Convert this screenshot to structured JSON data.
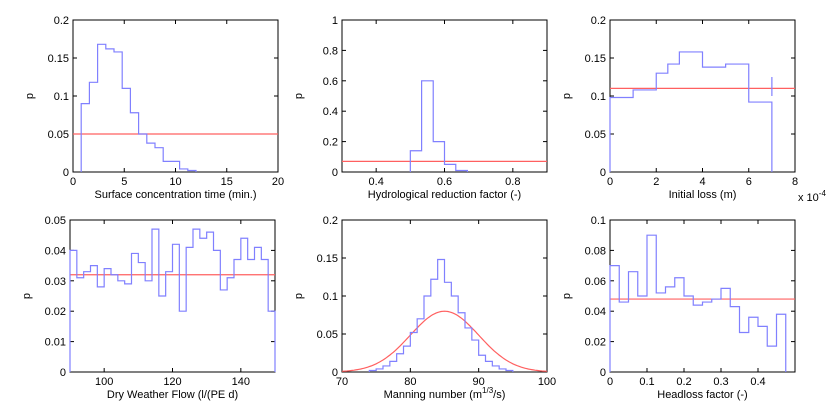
{
  "colors": {
    "histogram": "#8080ff",
    "prior": "#ff6060",
    "axes": "#000000"
  },
  "chart_data": [
    {
      "type": "step",
      "xlabel": "Surface concentration time (min.)",
      "ylabel": "p",
      "xlim": [
        0,
        20
      ],
      "ylim": [
        0,
        0.2
      ],
      "xticks": [
        "0",
        "5",
        "10",
        "15",
        "20"
      ],
      "yticks": [
        "0",
        "0.05",
        "0.1",
        "0.15",
        "0.2"
      ],
      "histogram": {
        "edges": [
          0.8,
          1.6,
          2.4,
          3.2,
          4.0,
          4.8,
          5.6,
          6.4,
          7.2,
          8.0,
          8.8,
          9.6,
          10.4,
          11.2,
          12.0
        ],
        "values": [
          0.09,
          0.118,
          0.168,
          0.162,
          0.158,
          0.11,
          0.078,
          0.05,
          0.038,
          0.032,
          0.014,
          0.014,
          0.004,
          0.002
        ]
      },
      "prior": {
        "kind": "constant",
        "value": 0.05,
        "x": [
          0,
          20
        ]
      }
    },
    {
      "type": "step",
      "xlabel": "Hydrological reduction factor (-)",
      "ylabel": "p",
      "xlim": [
        0.3,
        0.9
      ],
      "ylim": [
        0,
        1
      ],
      "xticks": [
        "0.4",
        "0.6",
        "0.8"
      ],
      "yticks": [
        "0",
        "0.2",
        "0.4",
        "0.6",
        "0.8",
        "1"
      ],
      "histogram": {
        "edges": [
          0.5,
          0.533,
          0.567,
          0.6,
          0.633,
          0.667
        ],
        "values": [
          0.14,
          0.6,
          0.2,
          0.05,
          0.01
        ]
      },
      "prior": {
        "kind": "constant",
        "value": 0.07,
        "x": [
          0.3,
          0.9
        ]
      }
    },
    {
      "type": "step",
      "xlabel": "Initial loss (m)",
      "ylabel": "p",
      "xlim": [
        0,
        8
      ],
      "ylim": [
        0,
        0.2
      ],
      "xticks": [
        "0",
        "2",
        "4",
        "6",
        "8"
      ],
      "yticks": [
        "0",
        "0.05",
        "0.1",
        "0.15",
        "0.2"
      ],
      "multiplier": "x 10",
      "multiplier_exp": "-4",
      "histogram": {
        "edges": [
          0,
          1,
          2,
          2.5,
          3,
          4,
          5,
          6,
          7
        ],
        "values": [
          0.098,
          0.108,
          0.13,
          0.142,
          0.158,
          0.138,
          0.142,
          0.092
        ]
      },
      "prior": {
        "kind": "constant",
        "value": 0.11,
        "x": [
          0,
          8
        ]
      },
      "tail": {
        "x": 7.0,
        "y0": 0.1,
        "y1": 0.125
      }
    },
    {
      "type": "step",
      "xlabel": "Dry Weather Flow (l/(PE d)",
      "ylabel": "p",
      "xlim": [
        90,
        150
      ],
      "ylim": [
        0,
        0.05
      ],
      "xticks": [
        "100",
        "120",
        "140"
      ],
      "yticks": [
        "0",
        "0.01",
        "0.02",
        "0.03",
        "0.04",
        "0.05"
      ],
      "histogram": {
        "edges": [
          90,
          92,
          94,
          96,
          98,
          100,
          102,
          104,
          106,
          108,
          110,
          112,
          114,
          116,
          118,
          120,
          122,
          124,
          126,
          128,
          130,
          132,
          134,
          136,
          138,
          140,
          142,
          144,
          146,
          148,
          150
        ],
        "values": [
          0.04,
          0.031,
          0.033,
          0.035,
          0.028,
          0.034,
          0.032,
          0.03,
          0.029,
          0.039,
          0.036,
          0.03,
          0.047,
          0.025,
          0.033,
          0.042,
          0.02,
          0.041,
          0.047,
          0.044,
          0.046,
          0.04,
          0.027,
          0.031,
          0.037,
          0.044,
          0.037,
          0.041,
          0.037,
          0.02
        ]
      },
      "prior": {
        "kind": "constant",
        "value": 0.032,
        "x": [
          90,
          150
        ]
      }
    },
    {
      "type": "step",
      "xlabel": "Manning number (m",
      "xlabel_sup": "1/3",
      "xlabel_tail": "/s)",
      "ylabel": "p",
      "xlim": [
        70,
        100
      ],
      "ylim": [
        0,
        0.2
      ],
      "xticks": [
        "70",
        "80",
        "90",
        "100"
      ],
      "yticks": [
        "0",
        "0.05",
        "0.1",
        "0.15",
        "0.2"
      ],
      "histogram": {
        "edges": [
          74,
          75,
          76,
          77,
          78,
          79,
          80,
          81,
          82,
          83,
          84,
          85,
          86,
          87,
          88,
          89,
          90,
          91,
          92,
          93,
          94,
          95
        ],
        "values": [
          0.002,
          0.004,
          0.008,
          0.014,
          0.024,
          0.034,
          0.052,
          0.07,
          0.1,
          0.122,
          0.148,
          0.118,
          0.1,
          0.078,
          0.058,
          0.042,
          0.022,
          0.014,
          0.008,
          0.004,
          0.002
        ]
      },
      "prior": {
        "kind": "normal",
        "mean": 85,
        "sd": 5,
        "peak": 0.08,
        "x": [
          70,
          100
        ]
      }
    },
    {
      "type": "step",
      "xlabel": "Headloss factor (-)",
      "ylabel": "p",
      "xlim": [
        0,
        0.5
      ],
      "ylim": [
        0,
        0.1
      ],
      "xticks": [
        "0",
        "0.1",
        "0.2",
        "0.3",
        "0.4"
      ],
      "yticks": [
        "0",
        "0.02",
        "0.04",
        "0.06",
        "0.08",
        "0.1"
      ],
      "histogram": {
        "edges": [
          0,
          0.025,
          0.05,
          0.075,
          0.1,
          0.125,
          0.15,
          0.175,
          0.2,
          0.225,
          0.25,
          0.275,
          0.3,
          0.325,
          0.35,
          0.375,
          0.4,
          0.425,
          0.45,
          0.475
        ],
        "values": [
          0.07,
          0.046,
          0.066,
          0.05,
          0.09,
          0.052,
          0.056,
          0.062,
          0.05,
          0.044,
          0.046,
          0.048,
          0.055,
          0.043,
          0.026,
          0.036,
          0.03,
          0.017,
          0.038
        ]
      },
      "prior": {
        "kind": "constant",
        "value": 0.048,
        "x": [
          0,
          0.5
        ]
      }
    }
  ]
}
